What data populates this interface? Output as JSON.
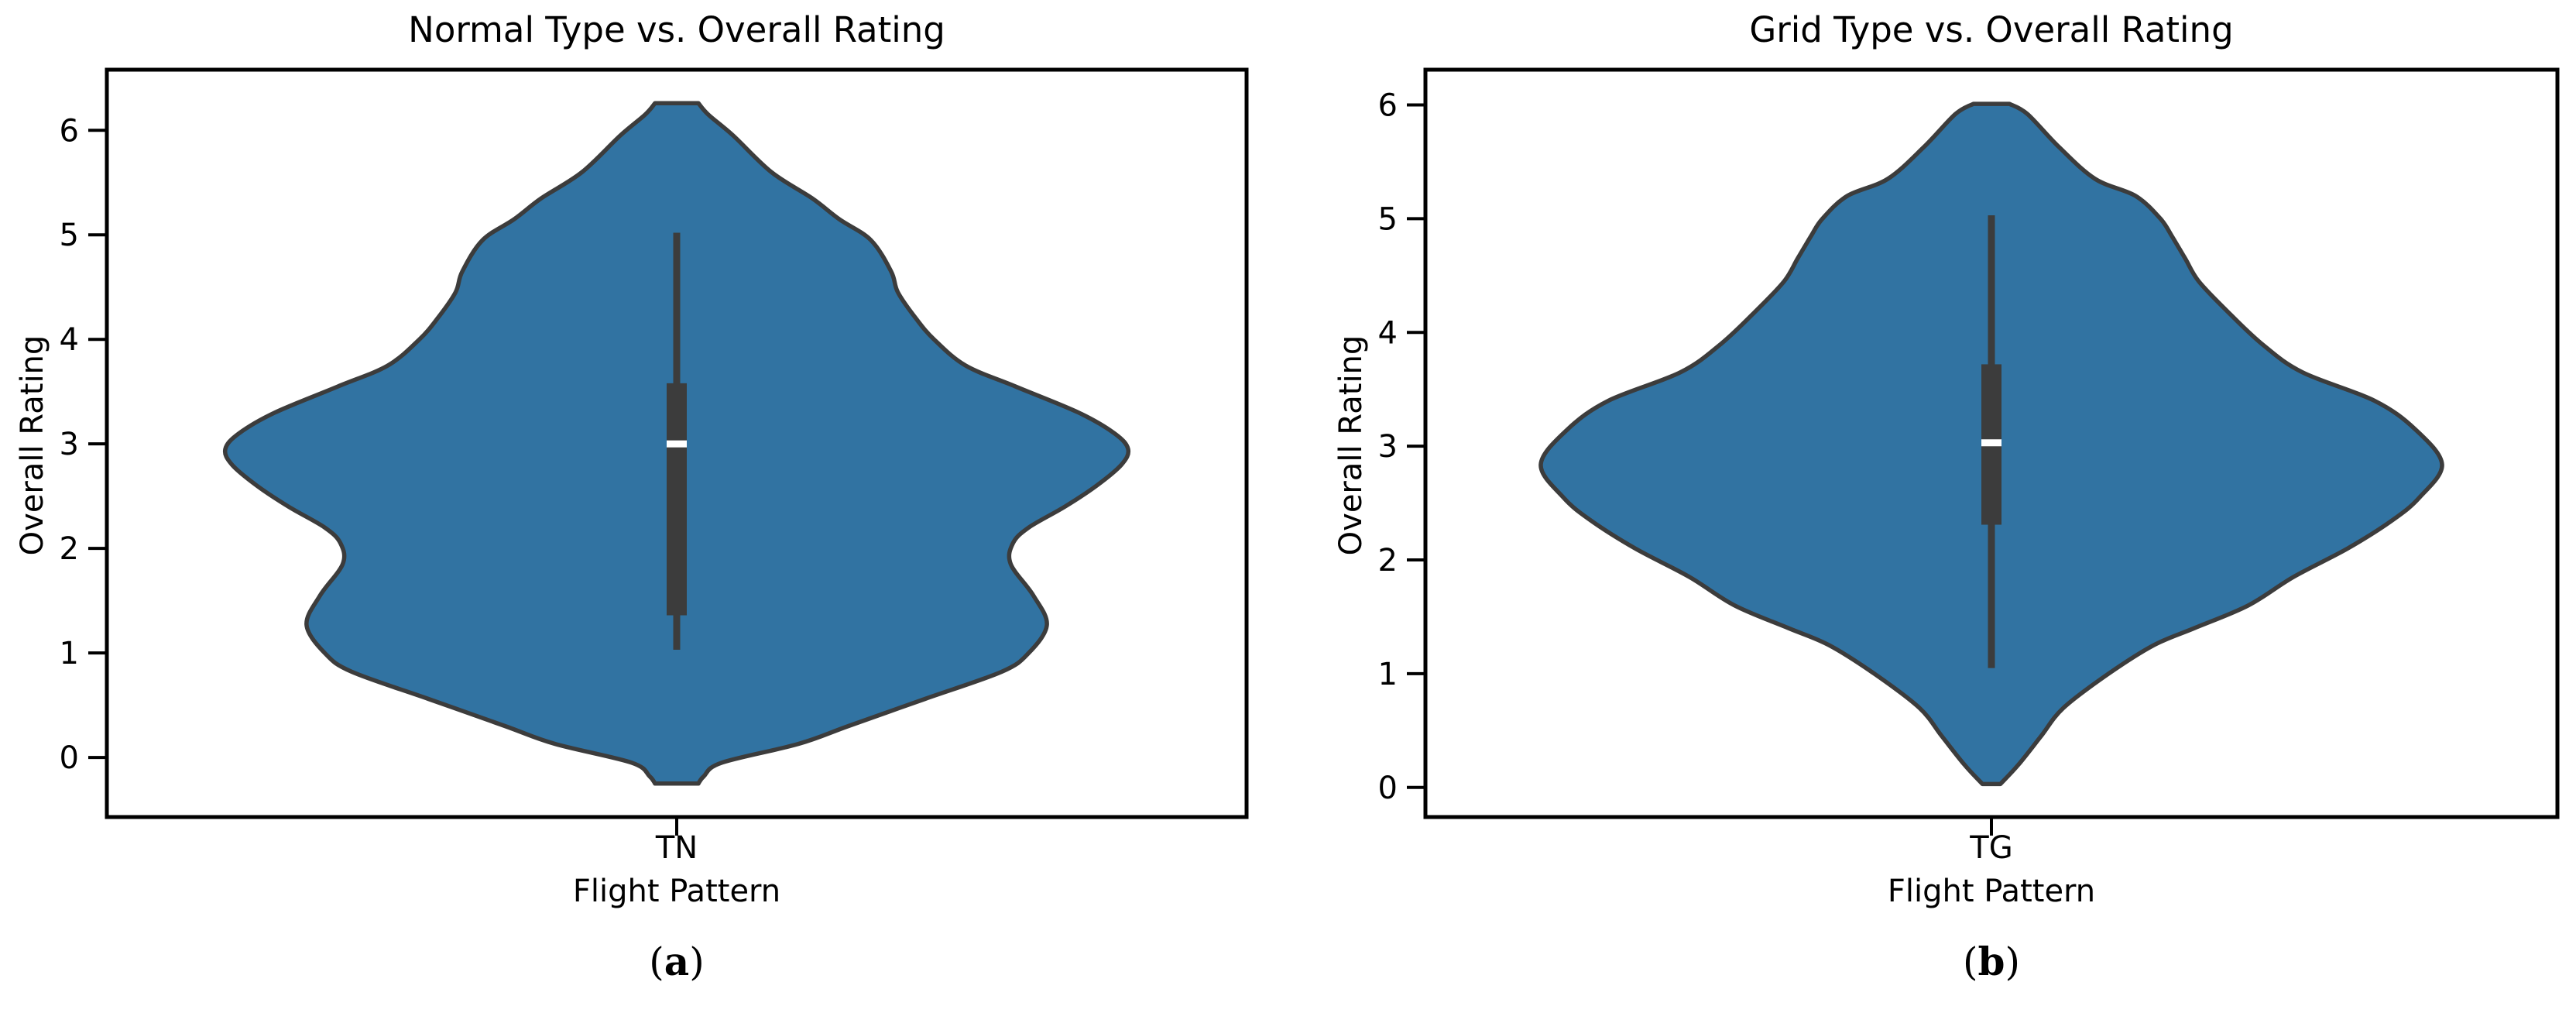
{
  "figure": {
    "background": "#ffffff",
    "colors": {
      "violin_fill": "#3173A2",
      "violin_edge": "#3C3C3C",
      "box_fill": "#3C3C3C",
      "median": "#FFFFFF",
      "spine": "#000000",
      "text": "#000000"
    }
  },
  "chart_data": [
    {
      "type": "violin",
      "panel": "a",
      "title": "Normal Type vs. Overall Rating",
      "xlabel": "Flight Pattern",
      "ylabel": "Overall Rating",
      "category": "TN",
      "caption_prefix": "(",
      "caption_letter": "a",
      "caption_suffix": ")",
      "yticks": [
        0,
        1,
        2,
        3,
        4,
        5,
        6
      ],
      "ylim": [
        -0.57,
        6.58
      ],
      "violin_range": [
        -0.25,
        6.26
      ],
      "box": {
        "q1": 1.36,
        "median": 3.0,
        "q3": 3.58,
        "whisker_low": 1.03,
        "whisker_high": 5.02
      },
      "profile": [
        [
          -0.25,
          0.048
        ],
        [
          -0.18,
          0.06
        ],
        [
          -0.05,
          0.1
        ],
        [
          0.13,
          0.27
        ],
        [
          0.3,
          0.38
        ],
        [
          0.56,
          0.55
        ],
        [
          0.82,
          0.72
        ],
        [
          1.0,
          0.78
        ],
        [
          1.27,
          0.82
        ],
        [
          1.55,
          0.79
        ],
        [
          1.85,
          0.74
        ],
        [
          2.05,
          0.745
        ],
        [
          2.2,
          0.78
        ],
        [
          2.4,
          0.86
        ],
        [
          2.6,
          0.93
        ],
        [
          2.8,
          0.985
        ],
        [
          2.95,
          1.0
        ],
        [
          3.1,
          0.97
        ],
        [
          3.3,
          0.89
        ],
        [
          3.55,
          0.75
        ],
        [
          3.75,
          0.64
        ],
        [
          4.0,
          0.57
        ],
        [
          4.2,
          0.53
        ],
        [
          4.45,
          0.49
        ],
        [
          4.65,
          0.475
        ],
        [
          4.95,
          0.43
        ],
        [
          5.15,
          0.36
        ],
        [
          5.35,
          0.3
        ],
        [
          5.6,
          0.21
        ],
        [
          5.95,
          0.125
        ],
        [
          6.15,
          0.07
        ],
        [
          6.26,
          0.048
        ]
      ]
    },
    {
      "type": "violin",
      "panel": "b",
      "title": "Grid Type vs. Overall Rating",
      "xlabel": "Flight Pattern",
      "ylabel": "Overall Rating",
      "category": "TG",
      "caption_prefix": "(",
      "caption_letter": "b",
      "caption_suffix": ")",
      "yticks": [
        0,
        1,
        2,
        3,
        4,
        5,
        6
      ],
      "ylim": [
        -0.26,
        6.31
      ],
      "violin_range": [
        0.03,
        6.01
      ],
      "box": {
        "q1": 2.31,
        "median": 3.03,
        "q3": 3.72,
        "whisker_low": 1.05,
        "whisker_high": 5.03
      },
      "profile": [
        [
          0.03,
          0.02
        ],
        [
          0.2,
          0.06
        ],
        [
          0.45,
          0.11
        ],
        [
          0.7,
          0.16
        ],
        [
          1.0,
          0.26
        ],
        [
          1.25,
          0.36
        ],
        [
          1.4,
          0.45
        ],
        [
          1.6,
          0.57
        ],
        [
          1.85,
          0.67
        ],
        [
          2.1,
          0.79
        ],
        [
          2.35,
          0.89
        ],
        [
          2.55,
          0.95
        ],
        [
          2.84,
          1.0
        ],
        [
          3.15,
          0.94
        ],
        [
          3.4,
          0.85
        ],
        [
          3.65,
          0.69
        ],
        [
          3.9,
          0.6
        ],
        [
          4.2,
          0.52
        ],
        [
          4.45,
          0.46
        ],
        [
          4.65,
          0.43
        ],
        [
          4.85,
          0.4
        ],
        [
          5.0,
          0.375
        ],
        [
          5.2,
          0.32
        ],
        [
          5.35,
          0.23
        ],
        [
          5.63,
          0.15
        ],
        [
          5.92,
          0.08
        ],
        [
          6.01,
          0.04
        ]
      ]
    }
  ]
}
